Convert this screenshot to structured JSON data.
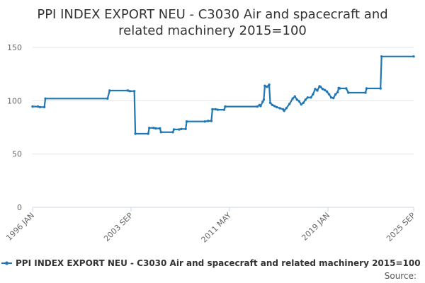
{
  "chart_data": {
    "type": "line",
    "title": "PPI INDEX EXPORT NEU - C3030 Air and spacecraft and related machinery 2015=100",
    "title_lines": [
      "PPI INDEX EXPORT NEU - C3030 Air and spacecraft and",
      "related machinery 2015=100"
    ],
    "xlabel": "",
    "ylabel": "",
    "ylim": [
      0,
      150
    ],
    "yticks": [
      0,
      50,
      100,
      150
    ],
    "xlim": [
      "1996-01",
      "2025-09"
    ],
    "xticks": [
      "1996 JAN",
      "2003 SEP",
      "2011 MAY",
      "2019 JAN",
      "2025 SEP"
    ],
    "grid": true,
    "legend_position": "bottom",
    "color": "#1f77b4",
    "source_label": "Source:",
    "series": [
      {
        "name": "PPI INDEX EXPORT NEU - C3030 Air and spacecraft and related machinery 2015=100",
        "points": [
          [
            "1996-01",
            94.5
          ],
          [
            "1996-06",
            94.5
          ],
          [
            "1996-08",
            94
          ],
          [
            "1996-12",
            94
          ],
          [
            "1997-01",
            102
          ],
          [
            "2001-11",
            102
          ],
          [
            "2002-01",
            109.5
          ],
          [
            "2003-06",
            109.5
          ],
          [
            "2003-08",
            109
          ],
          [
            "2003-12",
            109
          ],
          [
            "2004-01",
            69
          ],
          [
            "2005-01",
            69
          ],
          [
            "2005-02",
            74.5
          ],
          [
            "2005-06",
            74.5
          ],
          [
            "2005-08",
            74
          ],
          [
            "2005-12",
            74
          ],
          [
            "2006-01",
            70.5
          ],
          [
            "2006-12",
            70.5
          ],
          [
            "2007-01",
            73
          ],
          [
            "2007-06",
            73
          ],
          [
            "2007-08",
            73.5
          ],
          [
            "2007-12",
            73.5
          ],
          [
            "2008-01",
            80.5
          ],
          [
            "2009-06",
            80.5
          ],
          [
            "2009-09",
            81
          ],
          [
            "2009-12",
            81
          ],
          [
            "2010-01",
            92
          ],
          [
            "2010-04",
            92
          ],
          [
            "2010-06",
            91.5
          ],
          [
            "2010-12",
            91.5
          ],
          [
            "2011-01",
            94.5
          ],
          [
            "2013-07",
            94.5
          ],
          [
            "2013-09",
            96
          ],
          [
            "2013-10",
            95
          ],
          [
            "2013-12",
            99
          ],
          [
            "2014-01",
            101
          ],
          [
            "2014-02",
            114
          ],
          [
            "2014-04",
            113
          ],
          [
            "2014-06",
            115
          ],
          [
            "2014-07",
            98
          ],
          [
            "2014-09",
            96
          ],
          [
            "2014-11",
            95
          ],
          [
            "2015-01",
            94
          ],
          [
            "2015-04",
            93
          ],
          [
            "2015-07",
            92
          ],
          [
            "2015-08",
            90.5
          ],
          [
            "2015-10",
            93
          ],
          [
            "2016-01",
            97
          ],
          [
            "2016-04",
            102
          ],
          [
            "2016-06",
            104
          ],
          [
            "2016-08",
            101
          ],
          [
            "2016-10",
            99.5
          ],
          [
            "2016-12",
            96.5
          ],
          [
            "2017-02",
            98
          ],
          [
            "2017-04",
            101
          ],
          [
            "2017-06",
            103
          ],
          [
            "2017-09",
            103
          ],
          [
            "2017-11",
            106
          ],
          [
            "2018-01",
            111
          ],
          [
            "2018-03",
            109.5
          ],
          [
            "2018-05",
            113.5
          ],
          [
            "2018-06",
            113
          ],
          [
            "2018-08",
            111
          ],
          [
            "2018-10",
            110
          ],
          [
            "2018-12",
            108.5
          ],
          [
            "2019-02",
            106
          ],
          [
            "2019-04",
            103
          ],
          [
            "2019-06",
            102.5
          ],
          [
            "2019-08",
            106
          ],
          [
            "2019-10",
            108
          ],
          [
            "2019-11",
            112
          ],
          [
            "2019-12",
            111.5
          ],
          [
            "2020-06",
            111.5
          ],
          [
            "2020-08",
            107.5
          ],
          [
            "2021-12",
            107.5
          ],
          [
            "2022-01",
            111.5
          ],
          [
            "2023-02",
            111.5
          ],
          [
            "2023-03",
            141.5
          ],
          [
            "2025-09",
            141.5
          ]
        ]
      }
    ]
  }
}
